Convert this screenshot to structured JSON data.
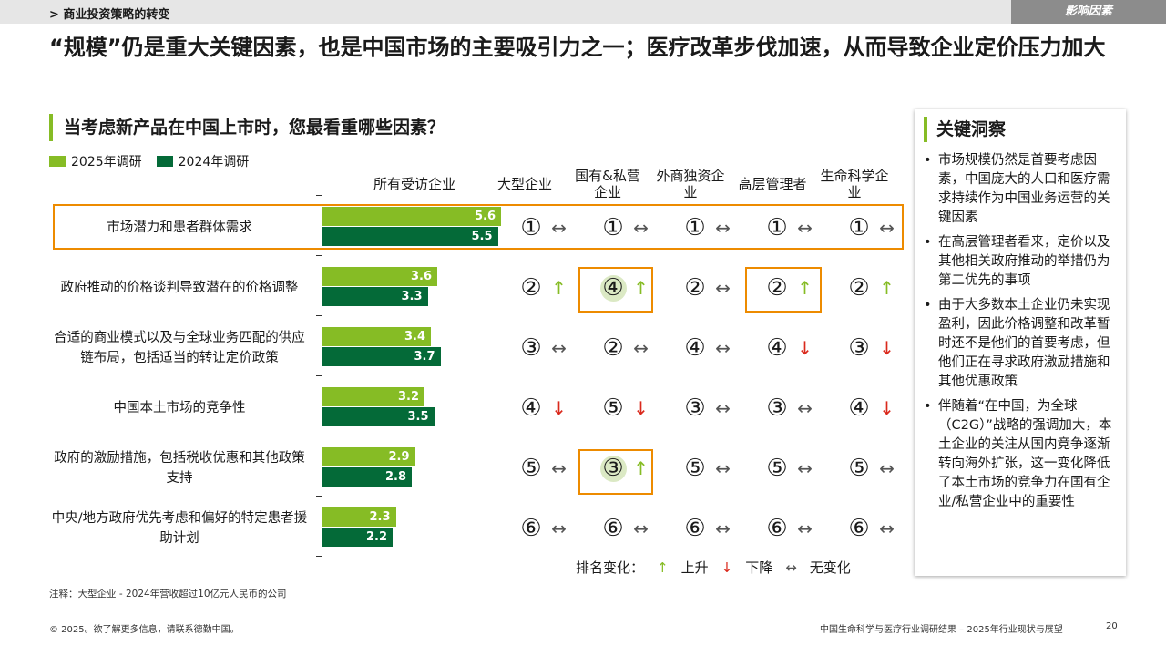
{
  "header": {
    "breadcrumb": "> 商业投资策略的转变",
    "tag": "影响因素"
  },
  "title": "“规模”仍是重大关键因素，也是中国市场的主要吸引力之一；医疗改革步伐加速，从而导致企业定价压力加大",
  "colors": {
    "series_2025": "#86bc25",
    "series_2024": "#046a38",
    "highlight": "#ed8b00",
    "up": "#86bc25",
    "down": "#da291c"
  },
  "chart_data": {
    "type": "bar",
    "title": "当考虑新产品在中国上市时，您最看重哪些因素？",
    "categories": [
      "市场潜力和患者群体需求",
      "政府推动的价格谈判导致潜在的价格调整",
      "合适的商业模式以及与全球业务匹配的供应链布局，包括适当的转让定价政策",
      "中国本土市场的竞争性",
      "政府的激励措施，包括税收优惠和其他政策支持",
      "中央/地方政府优先考虑和偏好的特定患者援助计划"
    ],
    "series": [
      {
        "name": "2025年调研",
        "values": [
          5.6,
          3.6,
          3.4,
          3.2,
          2.9,
          2.3
        ]
      },
      {
        "name": "2024年调研",
        "values": [
          5.5,
          3.3,
          3.7,
          3.5,
          2.8,
          2.2
        ]
      }
    ],
    "column_header": "所有受访企业",
    "ranking": {
      "columns": [
        "大型企业",
        "国有&私营企业",
        "外商独资企业",
        "高层管理者",
        "生命科学企业"
      ],
      "ranks": [
        [
          "①",
          "①",
          "①",
          "①",
          "①"
        ],
        [
          "②",
          "④",
          "②",
          "②",
          "②"
        ],
        [
          "③",
          "②",
          "④",
          "④",
          "③"
        ],
        [
          "④",
          "⑤",
          "③",
          "③",
          "④"
        ],
        [
          "⑤",
          "③",
          "⑤",
          "⑤",
          "⑤"
        ],
        [
          "⑥",
          "⑥",
          "⑥",
          "⑥",
          "⑥"
        ]
      ],
      "changes": [
        [
          "same",
          "same",
          "same",
          "same",
          "same"
        ],
        [
          "up",
          "up",
          "same",
          "up",
          "up"
        ],
        [
          "same",
          "same",
          "same",
          "down",
          "down"
        ],
        [
          "down",
          "down",
          "same",
          "same",
          "down"
        ],
        [
          "same",
          "up",
          "same",
          "same",
          "same"
        ],
        [
          "same",
          "same",
          "same",
          "same",
          "same"
        ]
      ],
      "legend": {
        "label": "排名变化：",
        "up": "上升",
        "down": "下降",
        "same": "无变化"
      }
    }
  },
  "insights": {
    "title": "关键洞察",
    "items": [
      "市场规模仍然是首要考虑因素，中国庞大的人口和医疗需求持续作为中国业务运营的关键因素",
      "在高层管理者看来，定价以及其他相关政府推动的举措仍为第二优先的事项",
      "由于大多数本土企业仍未实现盈利，因此价格调整和改革暂时还不是他们的首要考虑，但他们正在寻求政府激励措施和其他优惠政策",
      "伴随着“在中国，为全球（C2G）”战略的强调加大，本土企业的关注从国内竞争逐渐转向海外扩张，这一变化降低了本土市场的竞争力在国有企业/私营企业中的重要性"
    ]
  },
  "note": "注释：大型企业 - 2024年营收超过10亿元人民币的公司",
  "footer": {
    "left": "© 2025。欲了解更多信息，请联系德勤中国。",
    "right": "中国生命科学与医疗行业调研结果 – 2025年行业现状与展望",
    "page": "20"
  }
}
